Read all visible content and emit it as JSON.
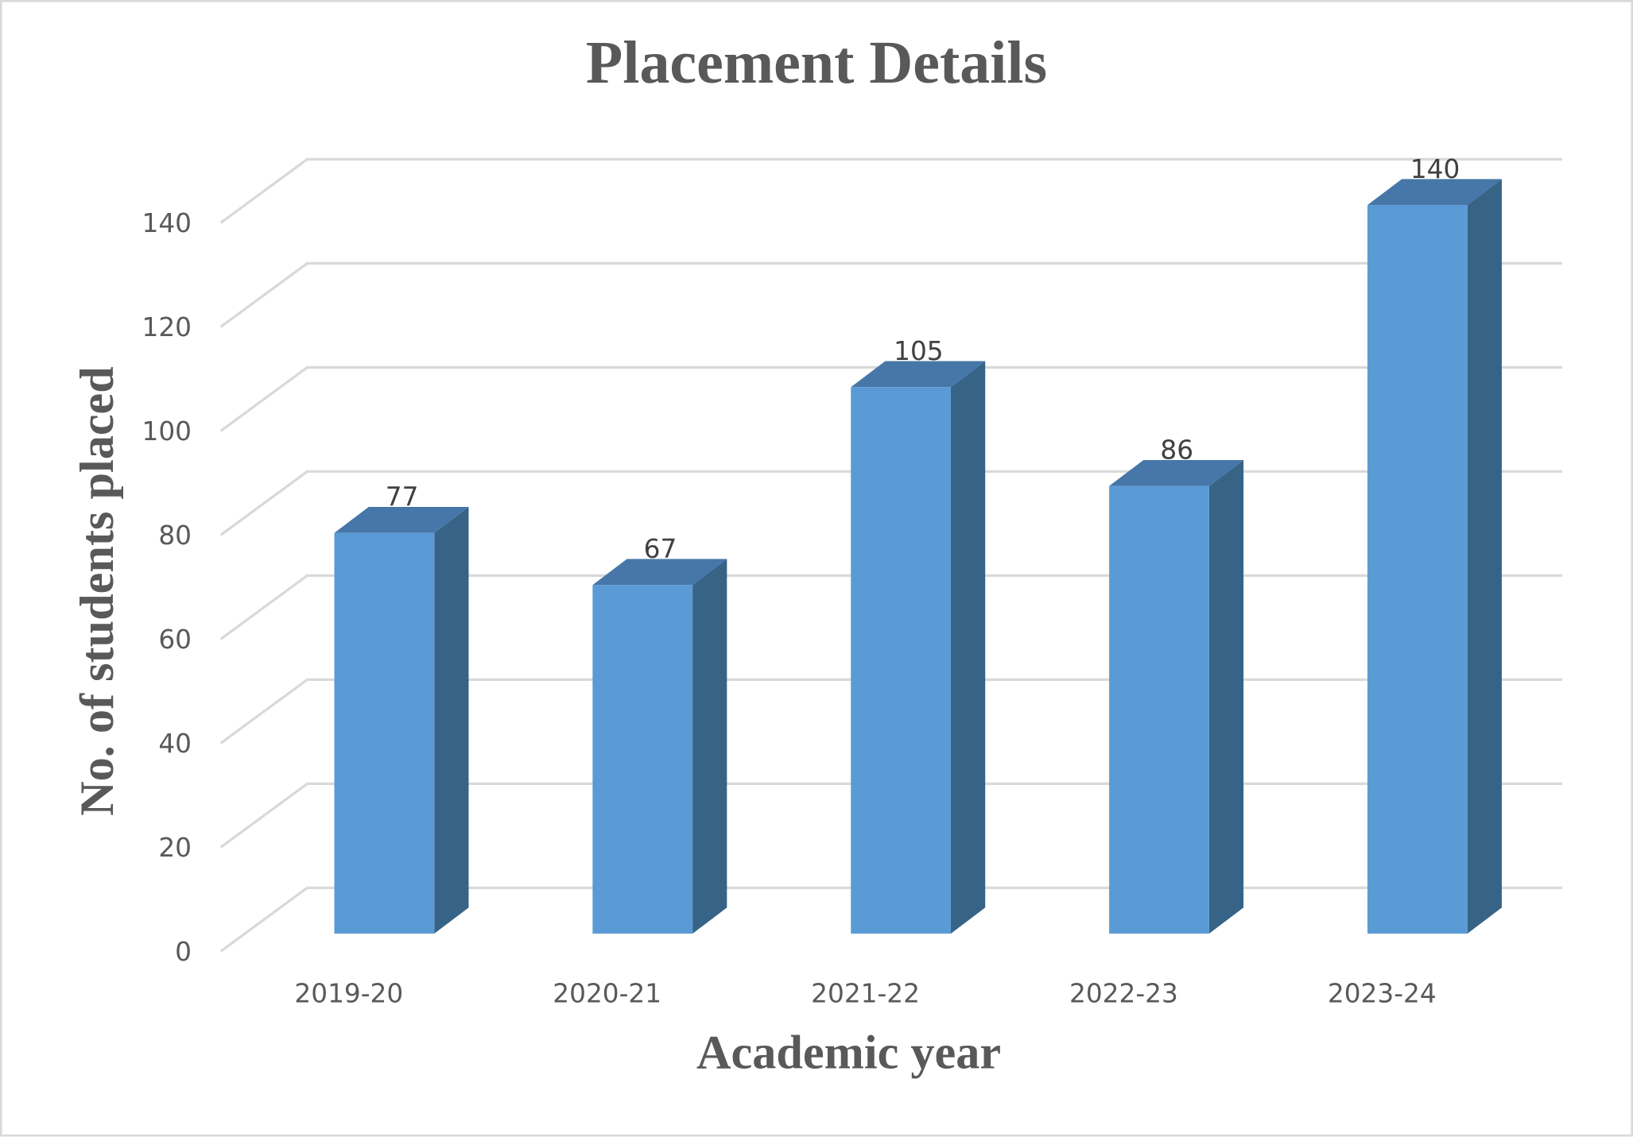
{
  "chart_data": {
    "type": "bar",
    "title": "Placement Details",
    "x_label": "Academic year",
    "y_label": "No. of students placed",
    "categories": [
      "2019-20",
      "2020-21",
      "2021-22",
      "2022-23",
      "2023-24"
    ],
    "values": [
      77,
      67,
      105,
      86,
      140
    ],
    "color": "#5b9bd5",
    "ylim": [
      0,
      140
    ],
    "yticks": [
      0,
      20,
      40,
      60,
      80,
      100,
      120,
      140
    ],
    "grid": true
  }
}
